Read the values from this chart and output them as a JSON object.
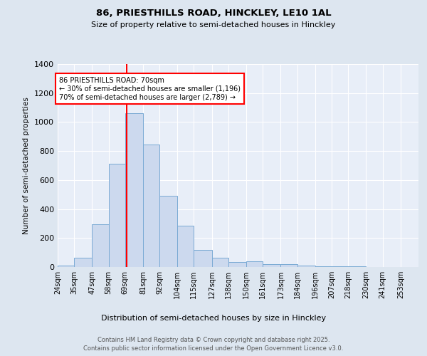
{
  "title_line1": "86, PRIESTHILLS ROAD, HINCKLEY, LE10 1AL",
  "title_line2": "Size of property relative to semi-detached houses in Hinckley",
  "xlabel": "Distribution of semi-detached houses by size in Hinckley",
  "ylabel": "Number of semi-detached properties",
  "bin_labels": [
    "24sqm",
    "35sqm",
    "47sqm",
    "58sqm",
    "69sqm",
    "81sqm",
    "92sqm",
    "104sqm",
    "115sqm",
    "127sqm",
    "138sqm",
    "150sqm",
    "161sqm",
    "173sqm",
    "184sqm",
    "196sqm",
    "207sqm",
    "218sqm",
    "230sqm",
    "241sqm",
    "253sqm"
  ],
  "bin_edges": [
    24,
    35,
    47,
    58,
    69,
    81,
    92,
    104,
    115,
    127,
    138,
    150,
    161,
    173,
    184,
    196,
    207,
    218,
    230,
    241,
    253
  ],
  "bar_heights": [
    10,
    65,
    295,
    710,
    1060,
    845,
    490,
    285,
    120,
    65,
    35,
    40,
    20,
    20,
    8,
    5,
    5,
    3,
    2,
    1,
    1
  ],
  "bar_color": "#ccd9ee",
  "bar_edge_color": "#7aaad4",
  "property_size": 70,
  "vline_color": "red",
  "annotation_text": "86 PRIESTHILLS ROAD: 70sqm\n← 30% of semi-detached houses are smaller (1,196)\n70% of semi-detached houses are larger (2,789) →",
  "annotation_box_color": "white",
  "annotation_box_edge_color": "red",
  "ylim": [
    0,
    1400
  ],
  "yticks": [
    0,
    200,
    400,
    600,
    800,
    1000,
    1200,
    1400
  ],
  "background_color": "#dde6f0",
  "plot_background_color": "#e8eef8",
  "footer_line1": "Contains HM Land Registry data © Crown copyright and database right 2025.",
  "footer_line2": "Contains public sector information licensed under the Open Government Licence v3.0."
}
